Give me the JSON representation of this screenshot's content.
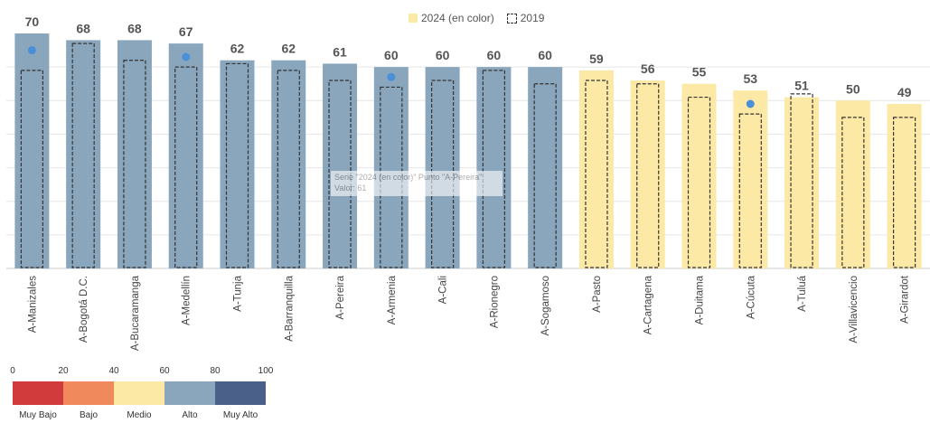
{
  "legend": {
    "label_2024": "2024 (en color)",
    "label_2019": "2019"
  },
  "tooltip": {
    "line1": "Serie \"2024 (en color)\" Punto \"A-Pereira\"",
    "line2": "Valor: 61"
  },
  "chart_data": {
    "type": "bar",
    "categories": [
      "A-Manizales",
      "A-Bogotá D.C.",
      "A-Bucaramanga",
      "A-Medellín",
      "A-Tunja",
      "A-Barranquilla",
      "A-Pereira",
      "A-Armenia",
      "A-Cali",
      "A-Rionegro",
      "A-Sogamoso",
      "A-Pasto",
      "A-Cartagena",
      "A-Duitama",
      "A-Cúcuta",
      "A-Tuluá",
      "A-Villavicencio",
      "A-Girardot"
    ],
    "series": [
      {
        "name": "2024 (en color)",
        "values": [
          70,
          68,
          68,
          67,
          62,
          62,
          61,
          60,
          60,
          60,
          60,
          59,
          56,
          55,
          53,
          51,
          50,
          49
        ]
      },
      {
        "name": "2019",
        "values": [
          59,
          67,
          62,
          60,
          61,
          59,
          56,
          54,
          56,
          59,
          55,
          56,
          55,
          51,
          46,
          52,
          45,
          45
        ]
      }
    ],
    "markers": [
      {
        "category": "A-Manizales",
        "value": 65
      },
      {
        "category": "A-Medellín",
        "value": 63
      },
      {
        "category": "A-Armenia",
        "value": 57
      },
      {
        "category": "A-Cúcuta",
        "value": 49
      }
    ],
    "ylim": [
      0,
      70
    ],
    "grid": true,
    "legend_position": "top-center",
    "colors": {
      "alto": "#8aa6bc",
      "medio": "#fde9a6"
    }
  },
  "scale": {
    "ticks": [
      "0",
      "20",
      "40",
      "60",
      "80",
      "100"
    ],
    "colors": [
      "#d13b3b",
      "#f08a5d",
      "#fde9a6",
      "#8aa6bc",
      "#4a6089"
    ],
    "labels": [
      "Muy Bajo",
      "Bajo",
      "Medio",
      "Alto",
      "Muy Alto"
    ]
  }
}
